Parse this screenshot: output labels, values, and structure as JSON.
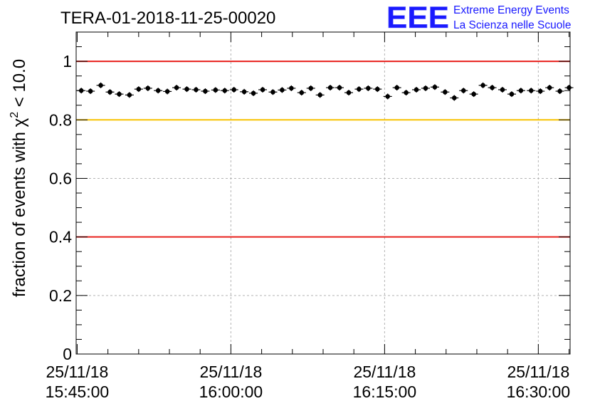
{
  "chart_data": {
    "type": "scatter",
    "title": "TERA-01-2018-11-25-00020",
    "ylabel_main": "fraction of events with χ",
    "ylabel_sup": "2",
    "ylabel_tail": " < 10.0",
    "xlabel": "",
    "ylim": [
      0,
      1.1
    ],
    "y_ticks": [
      0,
      0.2,
      0.4,
      0.6,
      0.8,
      1
    ],
    "y_tick_labels": [
      "0",
      "0.2",
      "0.4",
      "0.6",
      "0.8",
      "1"
    ],
    "x_range_min": [
      -0.1,
      48.1
    ],
    "x_ticks_min": [
      0,
      15,
      30,
      45
    ],
    "x_tick_labels": [
      {
        "date": "25/11/18",
        "time": "15:45:00"
      },
      {
        "date": "25/11/18",
        "time": "16:00:00"
      },
      {
        "date": "25/11/18",
        "time": "16:15:00"
      },
      {
        "date": "25/11/18",
        "time": "16:30:00"
      }
    ],
    "grid": true,
    "threshold_lines": [
      {
        "y": 1.0,
        "color": "#e8201c"
      },
      {
        "y": 0.8,
        "color": "#f7c200"
      },
      {
        "y": 0.4,
        "color": "#e8201c"
      }
    ],
    "series": [
      {
        "x": [
          0.4,
          1.3,
          2.3,
          3.2,
          4.1,
          5.1,
          6.0,
          6.9,
          7.9,
          8.8,
          9.7,
          10.7,
          11.6,
          12.5,
          13.5,
          14.4,
          15.3,
          16.3,
          17.2,
          18.1,
          19.1,
          20.0,
          20.9,
          21.9,
          22.8,
          23.7,
          24.7,
          25.6,
          26.5,
          27.5,
          28.4,
          29.3,
          30.3,
          31.2,
          32.1,
          33.1,
          34.0,
          34.9,
          35.9,
          36.8,
          37.7,
          38.7,
          39.6,
          40.5,
          41.5,
          42.4,
          43.3,
          44.3,
          45.2,
          46.1,
          47.1,
          48.0
        ],
        "y": [
          0.9,
          0.898,
          0.918,
          0.895,
          0.888,
          0.885,
          0.905,
          0.908,
          0.9,
          0.897,
          0.91,
          0.905,
          0.903,
          0.898,
          0.902,
          0.9,
          0.903,
          0.896,
          0.891,
          0.903,
          0.895,
          0.902,
          0.908,
          0.893,
          0.908,
          0.885,
          0.91,
          0.91,
          0.893,
          0.905,
          0.908,
          0.905,
          0.88,
          0.91,
          0.893,
          0.903,
          0.908,
          0.912,
          0.895,
          0.875,
          0.9,
          0.888,
          0.918,
          0.91,
          0.903,
          0.888,
          0.9,
          0.9,
          0.898,
          0.91,
          0.898,
          0.91
        ],
        "color": "#000000"
      }
    ]
  },
  "logo": {
    "mark": "EEE",
    "line1": "Extreme Energy Events",
    "line2": "La Scienza nelle Scuole",
    "color": "#1a1aff"
  }
}
